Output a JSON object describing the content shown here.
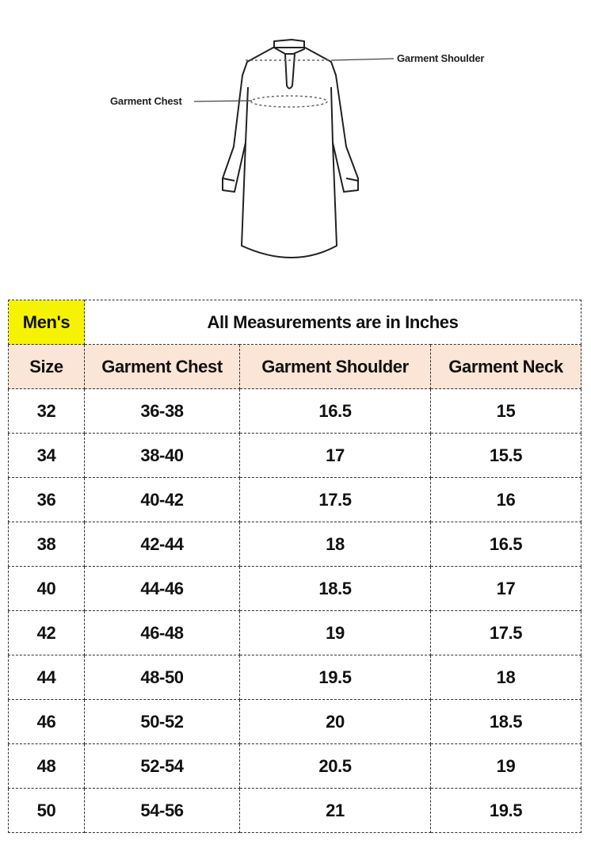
{
  "illustration": {
    "labels": {
      "shoulder": "Garment Shoulder",
      "chest": "Garment Chest"
    }
  },
  "table": {
    "gender_label": "Men's",
    "note": "All Measurements are in Inches",
    "colors": {
      "gender_bg": "#f5f300",
      "header_bg": "#fbe5d6"
    },
    "headers": [
      "Size",
      "Garment Chest",
      "Garment Shoulder",
      "Garment Neck"
    ],
    "rows": [
      [
        "32",
        "36-38",
        "16.5",
        "15"
      ],
      [
        "34",
        "38-40",
        "17",
        "15.5"
      ],
      [
        "36",
        "40-42",
        "17.5",
        "16"
      ],
      [
        "38",
        "42-44",
        "18",
        "16.5"
      ],
      [
        "40",
        "44-46",
        "18.5",
        "17"
      ],
      [
        "42",
        "46-48",
        "19",
        "17.5"
      ],
      [
        "44",
        "48-50",
        "19.5",
        "18"
      ],
      [
        "46",
        "50-52",
        "20",
        "18.5"
      ],
      [
        "48",
        "52-54",
        "20.5",
        "19"
      ],
      [
        "50",
        "54-56",
        "21",
        "19.5"
      ]
    ]
  }
}
